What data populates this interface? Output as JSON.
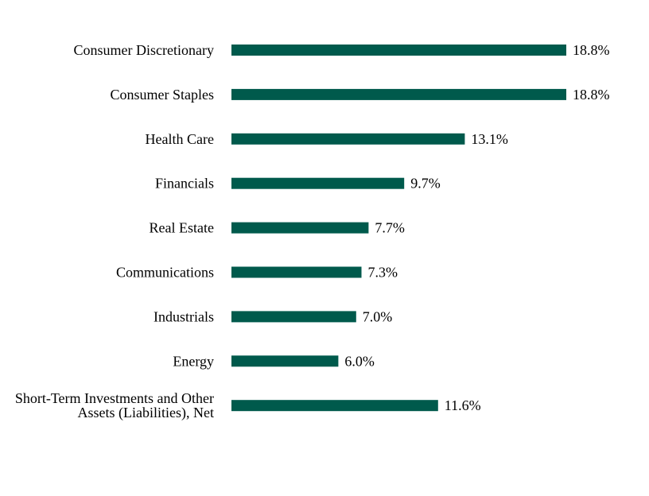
{
  "chart_data": {
    "type": "bar",
    "orientation": "horizontal",
    "categories": [
      "Consumer Discretionary",
      "Consumer Staples",
      "Health Care",
      "Financials",
      "Real Estate",
      "Communications",
      "Industrials",
      "Energy",
      "Short-Term Investments and Other Assets (Liabilities), Net"
    ],
    "category_lines": [
      [
        "Consumer Discretionary"
      ],
      [
        "Consumer Staples"
      ],
      [
        "Health Care"
      ],
      [
        "Financials"
      ],
      [
        "Real Estate"
      ],
      [
        "Communications"
      ],
      [
        "Industrials"
      ],
      [
        "Energy"
      ],
      [
        "Short-Term Investments and Other",
        "Assets (Liabilities), Net"
      ]
    ],
    "values": [
      18.8,
      18.8,
      13.1,
      9.7,
      7.7,
      7.3,
      7.0,
      6.0,
      11.6
    ],
    "value_labels": [
      "18.8%",
      "18.8%",
      "13.1%",
      "9.7%",
      "7.7%",
      "7.3%",
      "7.0%",
      "6.0%",
      "11.6%"
    ],
    "title": "",
    "xlabel": "",
    "ylabel": "",
    "xlim": [
      0,
      18.8
    ],
    "grid": false,
    "legend": "none",
    "bar_color": "#005a4c"
  }
}
